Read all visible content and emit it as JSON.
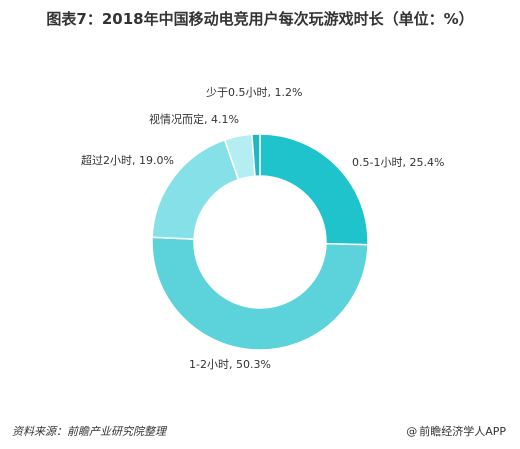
{
  "title": "图表7：2018年中国移动电竞用户每次玩游戏时长（单位：%）",
  "chart_data": {
    "type": "pie",
    "donut": true,
    "title": "图表7：2018年中国移动电竞用户每次玩游戏时长（单位：%）",
    "categories": [
      "0.5-1小时",
      "1-2小时",
      "超过2小时",
      "视情况而定",
      "少于0.5小时"
    ],
    "values": [
      25.4,
      50.3,
      19.0,
      4.1,
      1.2
    ],
    "labels": [
      "0.5-1小时, 25.4%",
      "1-2小时, 50.3%",
      "超过2小时, 19.0%",
      "视情况而定, 4.1%",
      "少于0.5小时, 1.2%"
    ],
    "colors": [
      "#1fc3cc",
      "#5cd2da",
      "#86e0e8",
      "#b4eef2",
      "#1fb7c0"
    ]
  },
  "footer": {
    "source": "资料来源：前瞻产业研究院整理",
    "brand_icon": "at-icon",
    "brand": "前瞻经济学人APP"
  }
}
